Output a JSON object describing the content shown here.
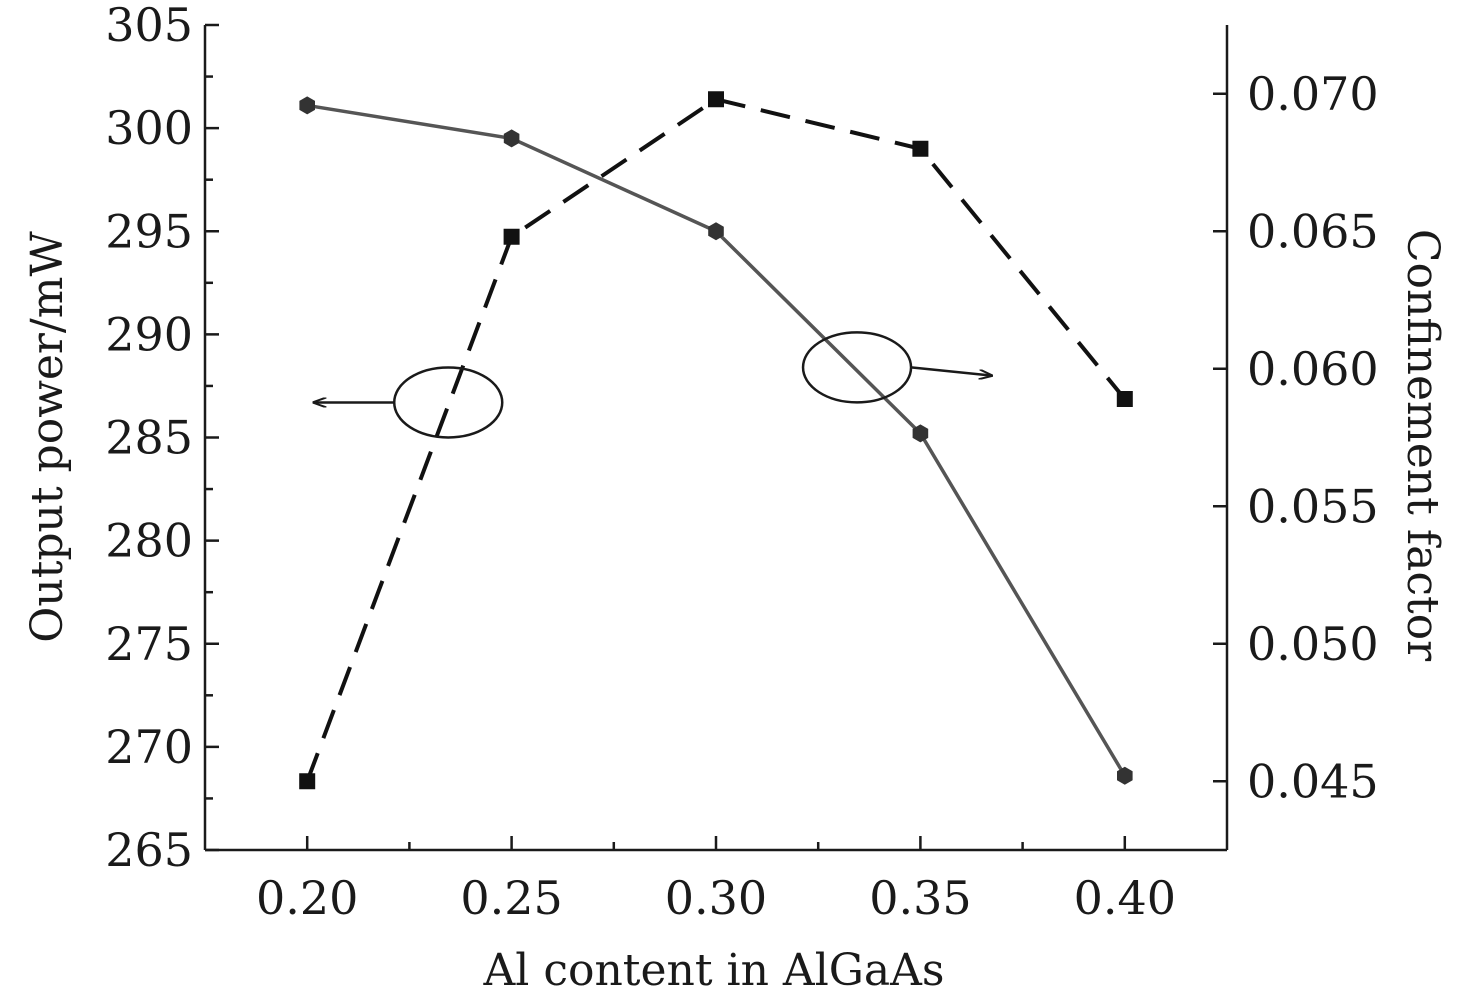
{
  "chart_data": {
    "type": "line",
    "xlabel": "Al content in AlGaAs",
    "ylabel": "Output power/mW",
    "y2label": "Confinement factor",
    "x": [
      0.2,
      0.25,
      0.3,
      0.35,
      0.4
    ],
    "xlim": [
      0.175,
      0.425
    ],
    "ylim": [
      265,
      305
    ],
    "y2lim": [
      0.0425,
      0.0725
    ],
    "x_ticks": [
      "0.20",
      "0.25",
      "0.30",
      "0.35",
      "0.40"
    ],
    "y_ticks": [
      "265",
      "270",
      "275",
      "280",
      "285",
      "290",
      "295",
      "300",
      "305"
    ],
    "y2_ticks": [
      "0.045",
      "0.050",
      "0.055",
      "0.060",
      "0.065",
      "0.070"
    ],
    "series": [
      {
        "axis": "left",
        "style": "solid",
        "marker": "hexagon",
        "color": "#555555",
        "values": [
          301.1,
          299.5,
          295.0,
          285.2,
          268.6
        ]
      },
      {
        "axis": "right",
        "style": "dashed",
        "marker": "square",
        "color": "#111111",
        "values": [
          0.045,
          0.0648,
          0.0698,
          0.068,
          0.0589
        ]
      }
    ],
    "annotations": [
      {
        "target_axis": "left",
        "arrow_direction": "left"
      },
      {
        "target_axis": "right",
        "arrow_direction": "right"
      }
    ],
    "grid": false,
    "legend": "none"
  }
}
